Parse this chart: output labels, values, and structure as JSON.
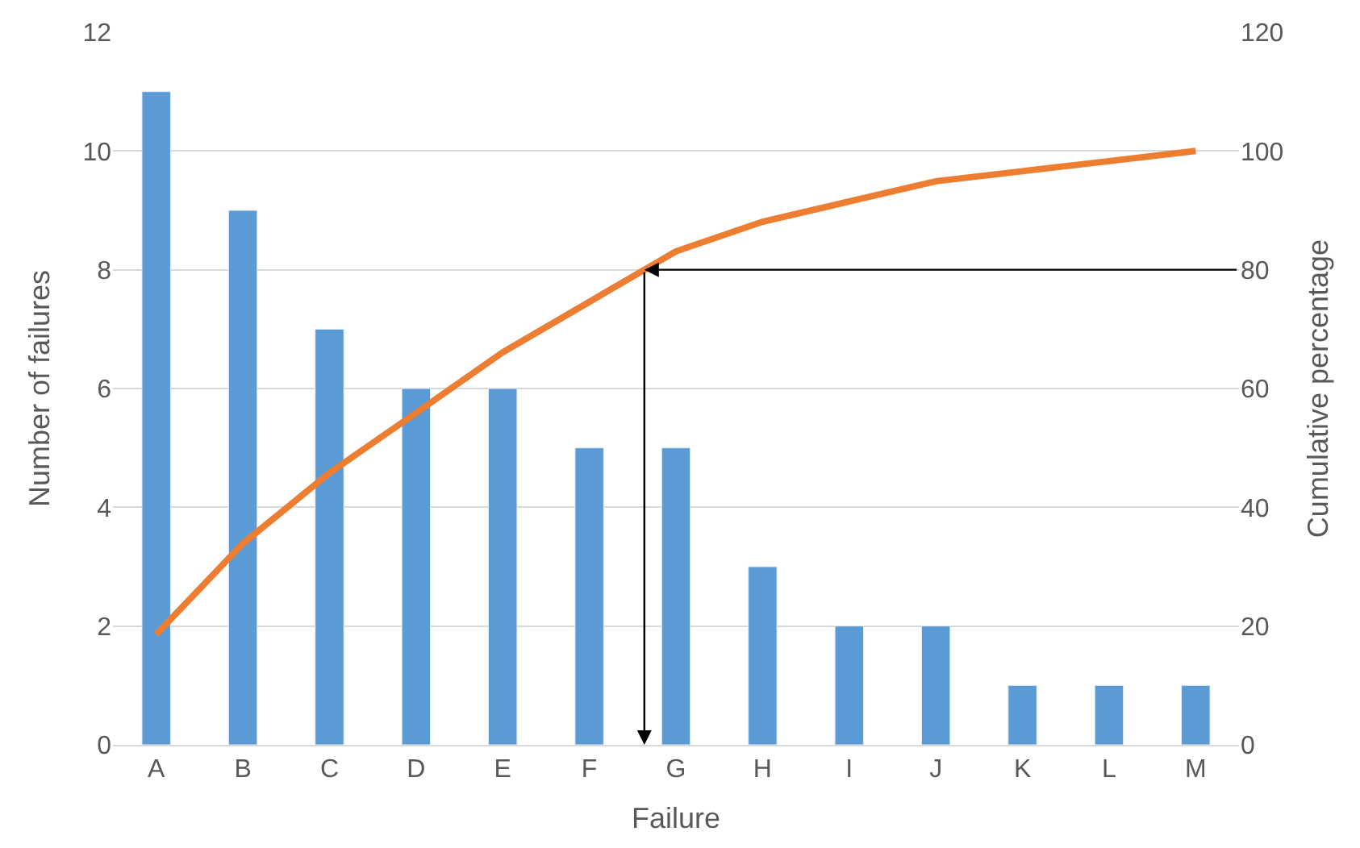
{
  "chart_data": {
    "type": "bar",
    "xlabel": "Failure",
    "ylabel": "Number of failures",
    "y2label": "Cumulative percentage",
    "categories": [
      "A",
      "B",
      "C",
      "D",
      "E",
      "F",
      "G",
      "H",
      "I",
      "J",
      "K",
      "L",
      "M"
    ],
    "series": [
      {
        "color": "#5b9bd5",
        "values": [
          11,
          9,
          7,
          6,
          6,
          5,
          5,
          3,
          2,
          2,
          1,
          1,
          1
        ]
      },
      {
        "type": "line",
        "axis": "y2",
        "color": "#ed7d31",
        "values": [
          18.6,
          33.9,
          45.8,
          55.9,
          66.1,
          74.6,
          83.1,
          88.1,
          91.5,
          94.9,
          96.6,
          98.3,
          100
        ]
      }
    ],
    "ylim": [
      0,
      12
    ],
    "yticks": [
      0,
      2,
      4,
      6,
      8,
      10,
      12
    ],
    "y2lim": [
      0,
      120
    ],
    "y2ticks": [
      0,
      20,
      40,
      60,
      80,
      100,
      120
    ],
    "ref_lines": [
      {
        "axis": "y2",
        "value": 80,
        "color": "#000000"
      }
    ],
    "grid": "y",
    "marker": "none",
    "line_style": "solid"
  }
}
